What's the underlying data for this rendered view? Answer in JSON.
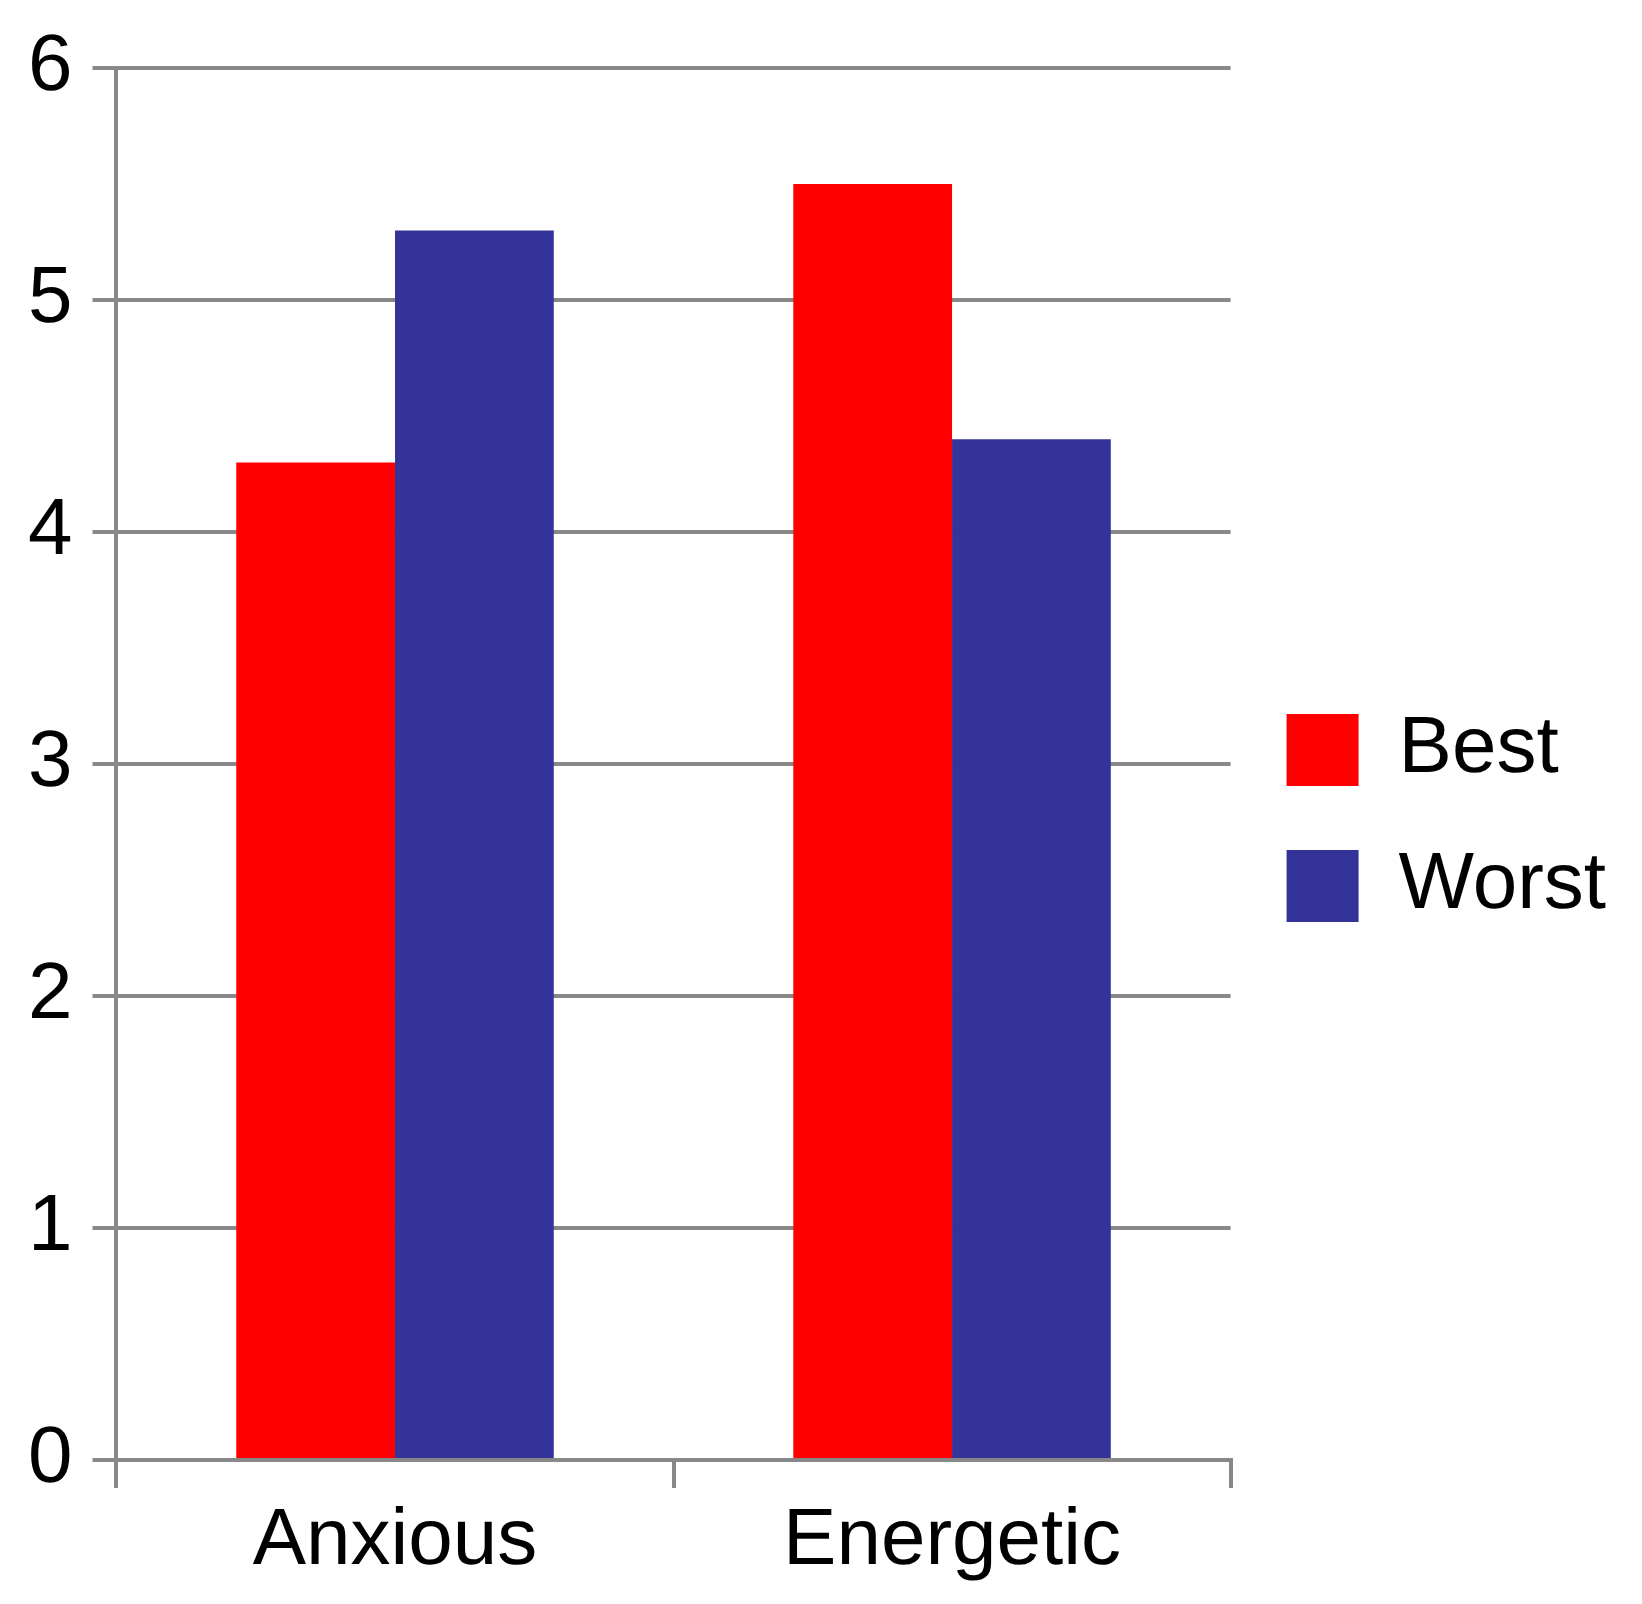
{
  "chart_data": {
    "type": "bar",
    "categories": [
      "Anxious",
      "Energetic"
    ],
    "series": [
      {
        "name": "Best",
        "color": "#ff0000",
        "values": [
          4.3,
          5.5
        ]
      },
      {
        "name": "Worst",
        "color": "#333399",
        "values": [
          5.3,
          4.4
        ]
      }
    ],
    "ylim": [
      0,
      6
    ],
    "yticks": [
      0,
      1,
      2,
      3,
      4,
      5,
      6
    ],
    "grid": "y",
    "legend": "right"
  }
}
